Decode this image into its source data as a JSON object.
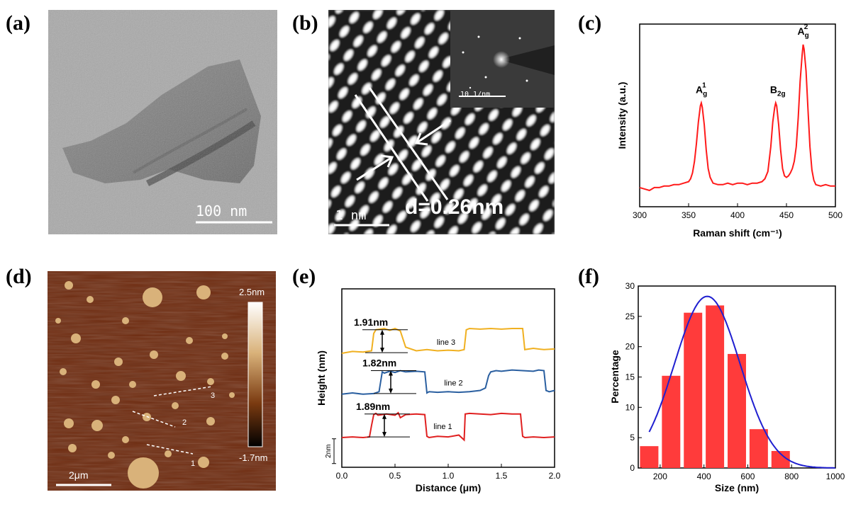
{
  "panel_labels": [
    "(a)",
    "(b)",
    "(c)",
    "(d)",
    "(e)",
    "(f)"
  ],
  "panel_a": {
    "scale_bar": "100 nm"
  },
  "panel_b": {
    "scale_bar": "1 nm",
    "d_spacing": "d=0.26nm",
    "inset_scale": "10 1/nm"
  },
  "panel_d": {
    "scale_bar": "2μm",
    "colorbar_max": "2.5nm",
    "colorbar_min": "-1.7nm",
    "line_markers": [
      "1",
      "2",
      "3"
    ]
  },
  "colors": {
    "raman": "#ff1a1a",
    "line1": "#e02020",
    "line2": "#2a5fa0",
    "line3": "#f0b020",
    "hist_bar": "#ff3b3b",
    "hist_fit": "#1f1fd0",
    "afm_bg": "#6e2a0e",
    "afm_flake": "#d9b27a"
  },
  "chart_data": [
    {
      "type": "line",
      "panel": "(c)",
      "xlabel": "Raman shift (cm⁻¹)",
      "ylabel": "Intensity (a.u.)",
      "xlim": [
        300,
        500
      ],
      "xticks": [
        300,
        350,
        400,
        450,
        500
      ],
      "peak_labels": [
        {
          "base": "A",
          "sub": "g",
          "sup": "1",
          "x": 363,
          "y": 0.6
        },
        {
          "base": "B",
          "sub": "2g",
          "sup": "",
          "x": 439,
          "y": 0.6
        },
        {
          "base": "A",
          "sub": "g",
          "sup": "2",
          "x": 467,
          "y": 1.0
        }
      ],
      "x": [
        300,
        305,
        310,
        315,
        320,
        325,
        330,
        335,
        340,
        345,
        350,
        352,
        354,
        356,
        358,
        360,
        362,
        363,
        364,
        366,
        368,
        370,
        372,
        375,
        380,
        385,
        390,
        395,
        400,
        405,
        410,
        415,
        420,
        425,
        428,
        431,
        434,
        436,
        438,
        439,
        440,
        442,
        444,
        446,
        448,
        450,
        452,
        454,
        456,
        458,
        460,
        462,
        464,
        466,
        467,
        468,
        470,
        472,
        474,
        476,
        478,
        480,
        485,
        490,
        495,
        500
      ],
      "y": [
        0.02,
        0.01,
        0.0,
        0.02,
        0.02,
        0.03,
        0.03,
        0.04,
        0.04,
        0.05,
        0.06,
        0.08,
        0.12,
        0.2,
        0.32,
        0.47,
        0.58,
        0.6,
        0.57,
        0.45,
        0.28,
        0.15,
        0.09,
        0.05,
        0.04,
        0.04,
        0.05,
        0.04,
        0.05,
        0.05,
        0.04,
        0.05,
        0.05,
        0.06,
        0.08,
        0.13,
        0.3,
        0.47,
        0.57,
        0.6,
        0.58,
        0.45,
        0.28,
        0.15,
        0.1,
        0.09,
        0.1,
        0.12,
        0.15,
        0.2,
        0.3,
        0.5,
        0.75,
        0.93,
        1.0,
        0.97,
        0.82,
        0.55,
        0.3,
        0.14,
        0.07,
        0.04,
        0.03,
        0.04,
        0.03,
        0.03
      ]
    },
    {
      "type": "line",
      "panel": "(e)",
      "xlabel": "Distance (μm)",
      "ylabel": "Height (nm)",
      "xlim": [
        0,
        2.0
      ],
      "xticks": [
        0.0,
        0.5,
        1.0,
        1.5,
        2.0
      ],
      "scale_label": "2nm",
      "series": [
        {
          "name": "line 1",
          "label": "line 1",
          "step_label": "1.89nm",
          "offset": 0,
          "x": [
            0,
            0.1,
            0.2,
            0.26,
            0.28,
            0.3,
            0.32,
            0.34,
            0.38,
            0.42,
            0.5,
            0.53,
            0.55,
            0.6,
            0.7,
            0.78,
            0.8,
            0.82,
            0.9,
            1.0,
            1.1,
            1.15,
            1.16,
            1.2,
            1.3,
            1.4,
            1.5,
            1.6,
            1.68,
            1.7,
            1.72,
            1.8,
            1.9,
            2.0
          ],
          "y": [
            0,
            0.05,
            0.0,
            0.05,
            1.0,
            1.85,
            1.95,
            1.8,
            1.85,
            1.9,
            1.8,
            2.0,
            1.6,
            1.85,
            1.9,
            1.85,
            0.1,
            0.0,
            0.1,
            0.05,
            0.2,
            -0.2,
            1.9,
            1.95,
            1.9,
            1.85,
            1.95,
            1.9,
            1.9,
            0.1,
            0.0,
            0.05,
            0.0,
            0.05
          ]
        },
        {
          "name": "line 2",
          "label": "line 2",
          "step_label": "1.82nm",
          "offset": 3.5,
          "x": [
            0,
            0.1,
            0.2,
            0.3,
            0.35,
            0.38,
            0.4,
            0.45,
            0.5,
            0.55,
            0.6,
            0.7,
            0.78,
            0.8,
            0.82,
            0.9,
            1.0,
            1.1,
            1.2,
            1.3,
            1.35,
            1.38,
            1.4,
            1.45,
            1.5,
            1.6,
            1.7,
            1.8,
            1.85,
            1.9,
            1.92,
            1.95,
            2.0
          ],
          "y": [
            0,
            0.1,
            0.0,
            0.05,
            0.2,
            1.8,
            1.7,
            1.85,
            1.75,
            1.9,
            1.8,
            1.85,
            1.8,
            0.1,
            0.2,
            0.15,
            0.2,
            0.15,
            0.2,
            0.3,
            0.5,
            1.5,
            1.8,
            1.9,
            1.85,
            1.95,
            1.9,
            1.85,
            1.95,
            1.9,
            0.3,
            0.2,
            0.3
          ]
        },
        {
          "name": "line 3",
          "label": "line 3",
          "step_label": "1.91nm",
          "offset": 6.8,
          "x": [
            0,
            0.1,
            0.2,
            0.28,
            0.3,
            0.32,
            0.4,
            0.45,
            0.5,
            0.55,
            0.6,
            0.7,
            0.8,
            0.9,
            1.0,
            1.1,
            1.15,
            1.17,
            1.2,
            1.3,
            1.4,
            1.5,
            1.6,
            1.7,
            1.72,
            1.8,
            1.9,
            2.0
          ],
          "y": [
            0,
            0.15,
            0.1,
            0.2,
            1.6,
            1.9,
            2.0,
            1.85,
            2.0,
            1.8,
            0.5,
            0.2,
            0.3,
            0.2,
            0.25,
            0.2,
            0.3,
            1.9,
            2.0,
            1.95,
            2.0,
            1.95,
            2.0,
            2.0,
            0.3,
            0.4,
            0.3,
            0.35
          ]
        }
      ]
    },
    {
      "type": "bar",
      "panel": "(f)",
      "xlabel": "Size (nm)",
      "ylabel": "Percentage",
      "xlim": [
        100,
        1000
      ],
      "ylim": [
        0,
        30
      ],
      "xticks": [
        200,
        400,
        600,
        800,
        1000
      ],
      "yticks": [
        0,
        5,
        10,
        15,
        20,
        25,
        30
      ],
      "bin_centers": [
        150,
        250,
        350,
        450,
        550,
        650,
        750
      ],
      "values": [
        3.6,
        15.2,
        25.6,
        26.8,
        18.8,
        6.4,
        2.8
      ],
      "fit": {
        "type": "gaussian",
        "mu": 415,
        "sigma": 150,
        "peak": 28.3
      }
    }
  ]
}
